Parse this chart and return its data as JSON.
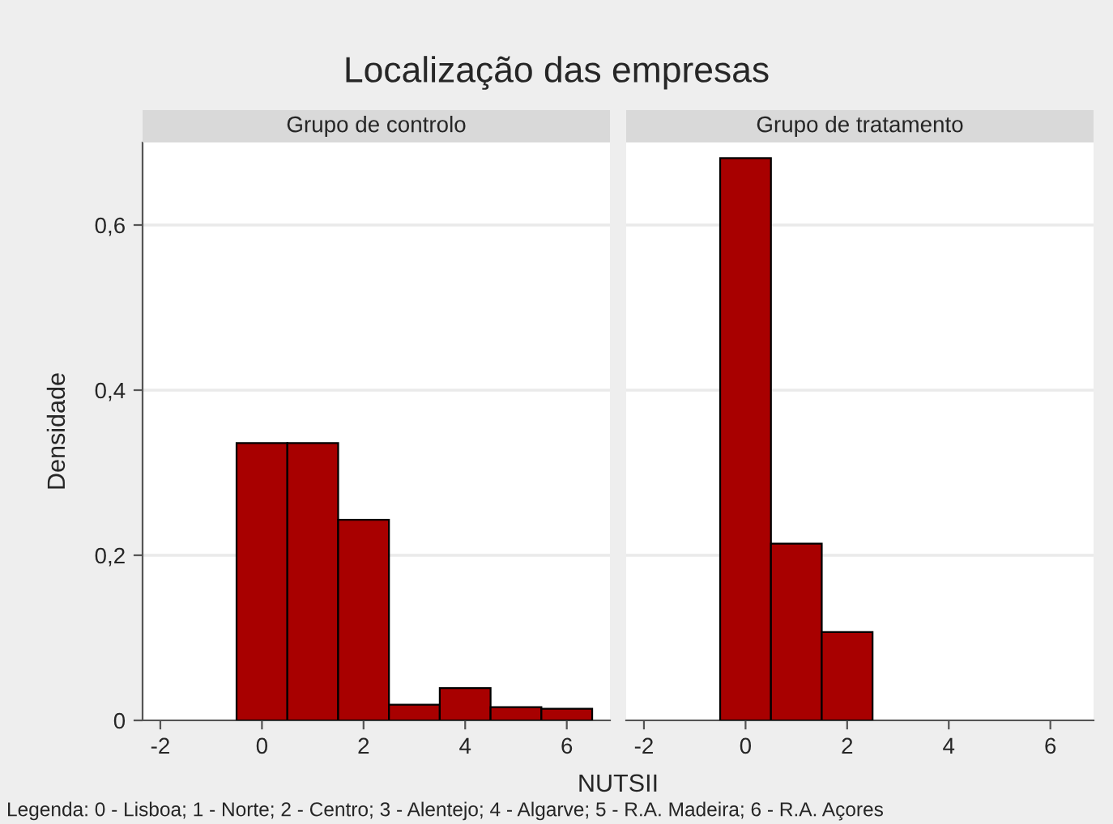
{
  "chart_data": [
    {
      "type": "histogram",
      "title": "Localização das empresas",
      "subtitle": "Grupo de controlo",
      "ylabel": "Densidade",
      "xlabel": "NUTSII",
      "annotations": [
        "Legenda: 0 - Lisboa; 1 - Norte; 2 - Centro; 3 - Alentejo; 4 - Algarve; 5 - R.A. Madeira; 6 - R.A. Açores"
      ],
      "bins": [
        -0.5,
        0.5,
        1.5,
        2.5,
        3.5,
        4.5,
        5.5,
        6.5
      ],
      "values": [
        0.336,
        0.336,
        0.243,
        0.019,
        0.039,
        0.016,
        0.014
      ],
      "color": "#a80000",
      "xlim": [
        -2.35,
        6.85
      ],
      "xticks": [
        {
          "value": -2,
          "label": "-2"
        },
        0,
        2,
        4,
        6
      ],
      "ylim": [
        0,
        0.7
      ],
      "yticks": [
        0,
        {
          "value": 0.2,
          "label": "0,2"
        },
        {
          "value": 0.4,
          "label": "0,4"
        },
        {
          "value": 0.6,
          "label": "0,6"
        }
      ],
      "grid": "y"
    },
    {
      "type": "histogram",
      "subtitle": "Grupo de tratamento",
      "bins": [
        -0.5,
        0.5,
        1.5,
        2.5
      ],
      "values": [
        0.681,
        0.214,
        0.107
      ],
      "color": "#a80000",
      "xlim": [
        -2.35,
        6.85
      ],
      "xticks": [
        {
          "value": -2,
          "label": "-2"
        },
        0,
        2,
        4,
        6
      ],
      "ylim": [
        0,
        0.7
      ],
      "yticks": [
        {
          "value": 0,
          "label": null
        },
        {
          "value": 0.2,
          "label": null
        },
        {
          "value": 0.4,
          "label": null
        },
        {
          "value": 0.6,
          "label": null
        }
      ],
      "grid": "y",
      "tick_labels": "x"
    }
  ]
}
